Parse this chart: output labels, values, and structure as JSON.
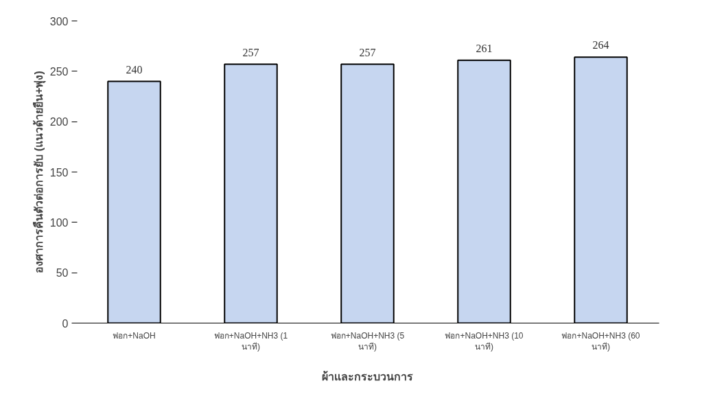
{
  "chart_data": {
    "type": "bar",
    "xlabel": "ผ้าและกระบวนการ",
    "ylabel": "องศาการคืนตัวต่อการยับ (แนวด้ายยืน+พุ่ง)",
    "categories": [
      "ฟอก+NaOH",
      "ฟอก+NaOH+NH3 (1 นาที)",
      "ฟอก+NaOH+NH3 (5 นาที)",
      "ฟอก+NaOH+NH3 (10 นาที)",
      "ฟอก+NaOH+NH3 (60 นาที)"
    ],
    "values": [
      240,
      257,
      257,
      261,
      264
    ],
    "color": "#c6d6f0",
    "ylim": [
      0,
      300
    ],
    "yticks": [
      0,
      50,
      100,
      150,
      200,
      250,
      300
    ],
    "data_labels": true,
    "grid": false
  }
}
